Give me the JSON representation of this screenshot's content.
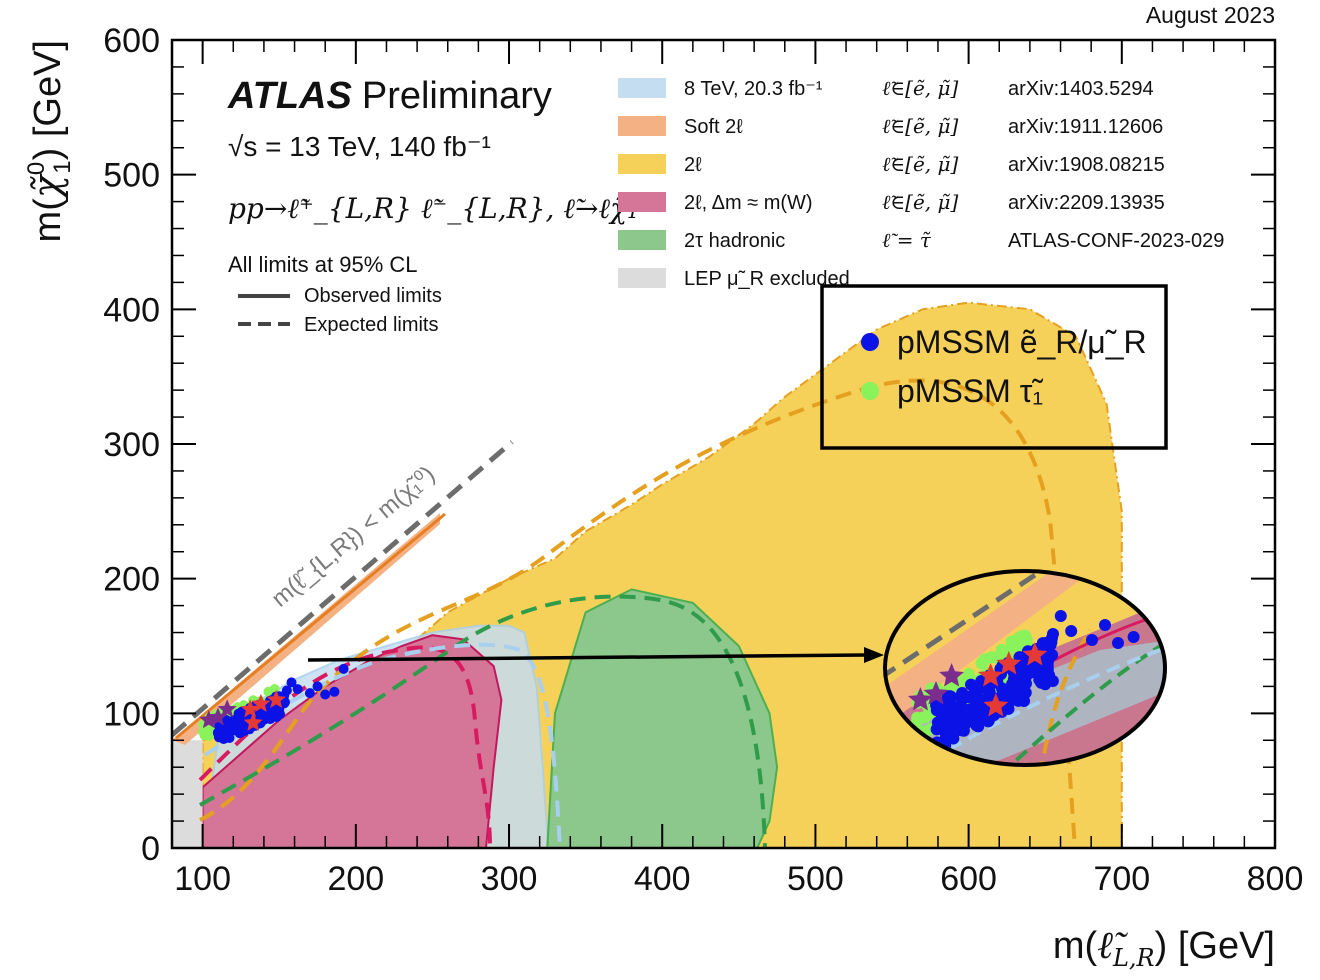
{
  "chart_data": {
    "type": "area",
    "date": "August 2023",
    "xlabel": "m(ℓ̃_{L,R}) [GeV]",
    "xlabel_base": "m(",
    "xlabel_sym": "ℓ̃",
    "xlabel_sub": "L,R",
    "xlabel_unit": ") [GeV]",
    "ylabel": "m(χ̃₁⁰) [GeV]",
    "ylabel_base": "m(",
    "ylabel_sym": "χ̃",
    "ylabel_sup": "0",
    "ylabel_sub": "1",
    "ylabel_unit": ") [GeV]",
    "xlim": [
      80,
      800
    ],
    "ylim": [
      0,
      600
    ],
    "xticks": [
      100,
      200,
      300,
      400,
      500,
      600,
      700,
      800
    ],
    "yticks": [
      0,
      100,
      200,
      300,
      400,
      500,
      600
    ],
    "experiment": "ATLAS",
    "status": "Preliminary",
    "energy": "√s = 13 TeV, 140 fb⁻¹",
    "process": "pp→ℓ̃⁺_{L,R} ℓ̃⁻_{L,R}, ℓ̃→ℓχ̃₁⁰",
    "cl_note": "All limits at 95% CL",
    "observed_label": "Observed limits",
    "expected_label": "Expected limits",
    "diagonal_label": "m(ℓ̃_{L,R}) < m(χ̃₁⁰)",
    "legend": [
      {
        "label": "8 TeV, 20.3 fb⁻¹",
        "slepton": "ℓ̃∈[ẽ, μ̃]",
        "ref": "arXiv:1403.5294",
        "color": "#c5ddf1"
      },
      {
        "label": "Soft 2ℓ",
        "slepton": "ℓ̃∈[ẽ, μ̃]",
        "ref": "arXiv:1911.12606",
        "color": "#f4b183"
      },
      {
        "label": "2ℓ",
        "slepton": "ℓ̃∈[ẽ, μ̃]",
        "ref": "arXiv:1908.08215",
        "color": "#f6d15a"
      },
      {
        "label": "2ℓ, Δm ≈ m(W)",
        "slepton": "ℓ̃∈[ẽ, μ̃]",
        "ref": "arXiv:2209.13935",
        "color": "#d57698"
      },
      {
        "label": "2τ hadronic",
        "slepton": "ℓ̃ = τ̃",
        "ref": "ATLAS-CONF-2023-029",
        "color": "#8cc78c"
      },
      {
        "label": "LEP μ̃_R excluded",
        "slepton": "",
        "ref": "",
        "color": "#dcdcdc"
      }
    ],
    "pmssm_legend": [
      {
        "label": "pMSSM ẽ_R/μ̃_R",
        "color": "#0a12e6"
      },
      {
        "label": "pMSSM τ̃₁",
        "color": "#8af25a"
      }
    ],
    "series": [
      {
        "name": "8 TeV 2ℓ",
        "color": "#c5ddf1",
        "x": [
          100,
          110,
          130,
          160,
          190,
          220,
          250,
          280,
          300,
          310,
          318,
          322,
          325,
          325
        ],
        "y": [
          0,
          80,
          105,
          125,
          140,
          150,
          160,
          165,
          165,
          160,
          120,
          60,
          10,
          0
        ]
      },
      {
        "name": "Soft 2ℓ",
        "color": "#f4b183",
        "x": [
          102,
          120,
          140,
          165,
          190,
          210,
          220,
          230,
          215,
          195,
          170,
          145,
          120,
          105
        ],
        "y": [
          80,
          103,
          125,
          148,
          175,
          195,
          205,
          215,
          200,
          180,
          155,
          128,
          102,
          85
        ]
      },
      {
        "name": "2ℓ",
        "color": "#f6d15a",
        "x": [
          100,
          150,
          200,
          240,
          260,
          300,
          330,
          350,
          380,
          400,
          430,
          460,
          480,
          510,
          540,
          570,
          600,
          640,
          670,
          690,
          700,
          700,
          480,
          100
        ],
        "y": [
          80,
          100,
          125,
          155,
          175,
          200,
          215,
          235,
          255,
          270,
          290,
          315,
          335,
          360,
          385,
          400,
          405,
          400,
          380,
          330,
          250,
          0,
          0,
          0
        ]
      },
      {
        "name": "2ℓ, Δm ≈ m(W)",
        "color": "#d57698",
        "x": [
          100,
          150,
          180,
          210,
          230,
          250,
          270,
          290,
          295,
          290,
          285,
          100
        ],
        "y": [
          45,
          95,
          120,
          140,
          150,
          158,
          155,
          135,
          110,
          60,
          0,
          0
        ]
      },
      {
        "name": "2τ hadronic",
        "color": "#8cc78c",
        "x": [
          325,
          330,
          350,
          380,
          420,
          450,
          470,
          475,
          470,
          462,
          330
        ],
        "y": [
          0,
          100,
          175,
          192,
          182,
          150,
          100,
          60,
          20,
          0,
          0
        ]
      },
      {
        "name": "LEP μ̃_R excluded",
        "color": "#dcdcdc",
        "x": [
          80,
          100,
          100,
          80
        ],
        "y": [
          0,
          0,
          80,
          80
        ]
      }
    ],
    "stars_purple": [
      [
        104,
        95
      ],
      [
        116,
        103
      ],
      [
        110,
        97
      ]
    ],
    "stars_red": [
      [
        131,
        103
      ],
      [
        133,
        93
      ],
      [
        138,
        107
      ],
      [
        148,
        110
      ]
    ],
    "points_blue_extra": [
      [
        155,
        117
      ],
      [
        162,
        118
      ],
      [
        170,
        115
      ],
      [
        180,
        114
      ],
      [
        192,
        133
      ],
      [
        158,
        123
      ],
      [
        175,
        120
      ],
      [
        186,
        116
      ]
    ]
  }
}
